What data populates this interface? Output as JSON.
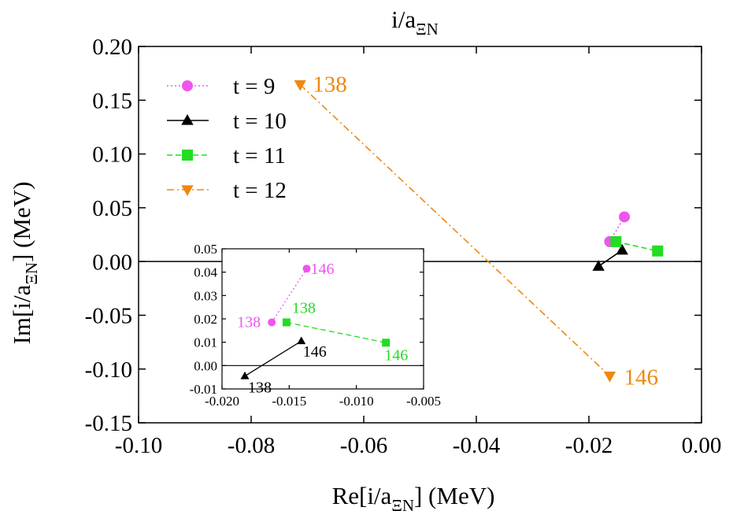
{
  "chart_data": {
    "type": "scatter",
    "title": {
      "main": "i/a",
      "sub": "ΞN"
    },
    "xlabel": {
      "pre": "Re[i/a",
      "sub": "ΞN",
      "post": "] (MeV)"
    },
    "ylabel": {
      "pre": "Im[i/a",
      "sub": "ΞN",
      "post": "] (MeV)"
    },
    "xlim": [
      -0.1,
      0.0
    ],
    "ylim": [
      -0.15,
      0.2
    ],
    "xticks": [
      "-0.10",
      "-0.08",
      "-0.06",
      "-0.04",
      "-0.02",
      "0.00"
    ],
    "yticks": [
      "-0.15",
      "-0.10",
      "-0.05",
      "0.00",
      "0.05",
      "0.10",
      "0.15",
      "0.20"
    ],
    "legend_position": "top-left",
    "series": [
      {
        "name": "t = 9",
        "color": "#ee55ee",
        "marker": "circle",
        "line": "dotted",
        "points": [
          {
            "x": -0.0163,
            "y": 0.0185,
            "label": "138"
          },
          {
            "x": -0.0137,
            "y": 0.0415,
            "label": "146"
          }
        ]
      },
      {
        "name": "t = 10",
        "color": "#000000",
        "marker": "triangle-up",
        "line": "solid",
        "points": [
          {
            "x": -0.0183,
            "y": -0.0045,
            "label": "138"
          },
          {
            "x": -0.0141,
            "y": 0.0105,
            "label": "146"
          }
        ]
      },
      {
        "name": "t = 11",
        "color": "#22dd22",
        "marker": "square",
        "line": "dashed",
        "points": [
          {
            "x": -0.0152,
            "y": 0.0185,
            "label": "138"
          },
          {
            "x": -0.0078,
            "y": 0.0098,
            "label": "146"
          }
        ]
      },
      {
        "name": "t = 12",
        "color": "#ee8811",
        "marker": "triangle-down",
        "line": "dashdot",
        "points": [
          {
            "x": -0.0713,
            "y": 0.1645,
            "label": "138"
          },
          {
            "x": -0.0163,
            "y": -0.1065,
            "label": "146"
          }
        ]
      }
    ],
    "inset": {
      "xlim": [
        -0.02,
        -0.005
      ],
      "ylim": [
        -0.01,
        0.05
      ],
      "xticks": [
        "-0.020",
        "-0.015",
        "-0.010",
        "-0.005"
      ],
      "yticks": [
        "-0.01",
        "0.00",
        "0.01",
        "0.02",
        "0.03",
        "0.04",
        "0.05"
      ],
      "series_index": [
        0,
        1,
        2
      ]
    }
  }
}
